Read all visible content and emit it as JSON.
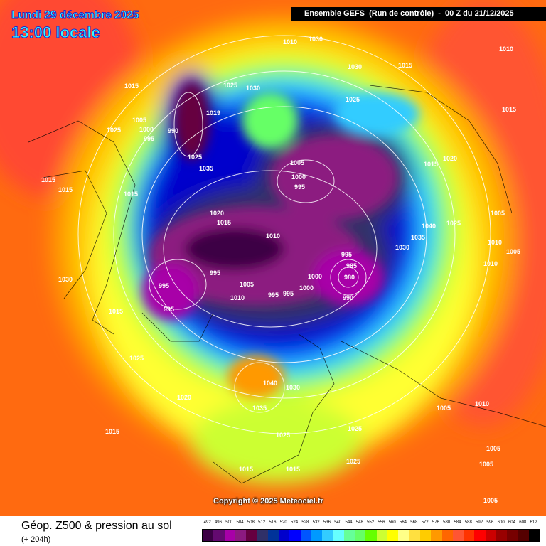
{
  "header": {
    "date": "Lundi 29 décembre 2025",
    "time": "13:00 locale",
    "model": "Ensemble GEFS  (Run de contrôle)  -  00 Z du 21/12/2025"
  },
  "copyright": "Copyright © 2025 Meteociel.fr",
  "footer": {
    "title": "Géop. Z500 & pression au sol",
    "subtitle": "(+ 204h)"
  },
  "legend": {
    "values": [
      "492",
      "496",
      "500",
      "504",
      "508",
      "512",
      "516",
      "520",
      "524",
      "528",
      "532",
      "536",
      "540",
      "544",
      "548",
      "552",
      "556",
      "560",
      "564",
      "568",
      "572",
      "576",
      "580",
      "584",
      "588",
      "592",
      "596",
      "600",
      "604",
      "608",
      "612"
    ],
    "colors": [
      "#3c0044",
      "#640a70",
      "#a800a8",
      "#8c1a80",
      "#660040",
      "#303068",
      "#003399",
      "#0000cc",
      "#0000ff",
      "#0055ff",
      "#0099ff",
      "#33ccff",
      "#66ffff",
      "#66ff99",
      "#66ff66",
      "#66ff00",
      "#ccff33",
      "#ffff00",
      "#ffff88",
      "#ffe040",
      "#ffcc00",
      "#ff9900",
      "#ff6600",
      "#ff5533",
      "#ff3300",
      "#ff0000",
      "#cc0000",
      "#990000",
      "#770000",
      "#550000",
      "#000000"
    ]
  },
  "pressure_labels": [
    "1010",
    "1030",
    "1015",
    "1010",
    "1015",
    "1025",
    "1030",
    "1025",
    "1005",
    "1000",
    "995",
    "990",
    "1019",
    "1025",
    "1035",
    "1025",
    "1015",
    "1015",
    "1015",
    "1030",
    "1005",
    "1000",
    "995",
    "1015",
    "1020",
    "1020",
    "1015",
    "1010",
    "995",
    "995",
    "1035",
    "1040",
    "1030",
    "1010",
    "1005",
    "1025",
    "995",
    "985",
    "980",
    "990",
    "1000",
    "995",
    "1010",
    "1005",
    "1000",
    "995",
    "995",
    "1030",
    "1015",
    "1040",
    "1030",
    "1035",
    "1020",
    "1025",
    "1015",
    "1005",
    "1010",
    "1005",
    "1025",
    "1015",
    "1015",
    "1025",
    "1005",
    "1005",
    "1005",
    "1010",
    "1015",
    "1025"
  ]
}
